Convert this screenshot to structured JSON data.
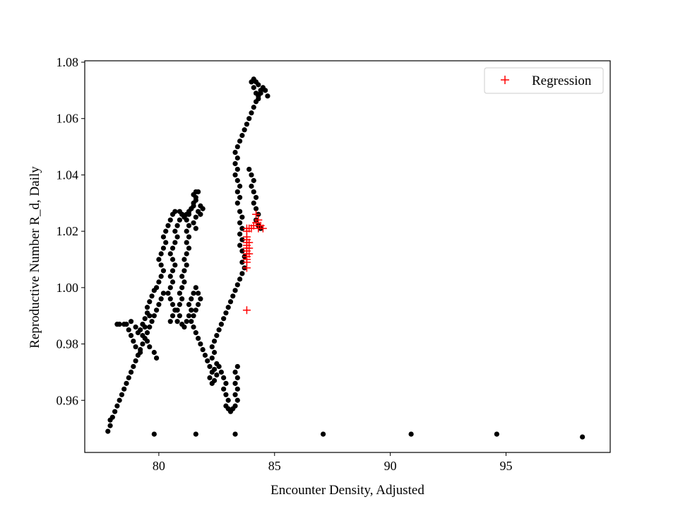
{
  "chart_data": {
    "type": "scatter",
    "xlabel": "Encounter Density, Adjusted",
    "ylabel": "Reproductive Number R_d, Daily",
    "xlim": [
      76.8,
      99.5
    ],
    "ylim": [
      0.9415,
      1.0805
    ],
    "xticks": [
      80,
      85,
      90,
      95
    ],
    "yticks": [
      0.96,
      0.98,
      1.0,
      1.02,
      1.04,
      1.06,
      1.08
    ],
    "ytick_labels": [
      "0.96",
      "0.98",
      "1.00",
      "1.02",
      "1.04",
      "1.06",
      "1.08"
    ],
    "legend_position": "top-right",
    "series": [
      {
        "name": "",
        "marker": "dot",
        "color": "#000000",
        "points": [
          [
            77.8,
            0.949
          ],
          [
            77.9,
            0.951
          ],
          [
            77.9,
            0.953
          ],
          [
            78.0,
            0.954
          ],
          [
            78.1,
            0.956
          ],
          [
            78.2,
            0.958
          ],
          [
            78.3,
            0.96
          ],
          [
            78.4,
            0.962
          ],
          [
            78.5,
            0.964
          ],
          [
            78.6,
            0.966
          ],
          [
            78.7,
            0.968
          ],
          [
            78.8,
            0.97
          ],
          [
            78.9,
            0.972
          ],
          [
            79.0,
            0.974
          ],
          [
            79.1,
            0.976
          ],
          [
            79.2,
            0.978
          ],
          [
            79.3,
            0.98
          ],
          [
            79.4,
            0.982
          ],
          [
            79.5,
            0.984
          ],
          [
            79.6,
            0.986
          ],
          [
            79.7,
            0.988
          ],
          [
            79.8,
            0.99
          ],
          [
            79.9,
            0.992
          ],
          [
            80.0,
            0.994
          ],
          [
            80.1,
            0.996
          ],
          [
            80.2,
            0.998
          ],
          [
            78.6,
            0.987
          ],
          [
            78.8,
            0.988
          ],
          [
            79.0,
            0.986
          ],
          [
            79.1,
            0.984
          ],
          [
            79.2,
            0.985
          ],
          [
            79.3,
            0.987
          ],
          [
            79.4,
            0.989
          ],
          [
            79.5,
            0.991
          ],
          [
            79.6,
            0.99
          ],
          [
            79.4,
            0.986
          ],
          [
            79.3,
            0.983
          ],
          [
            79.5,
            0.981
          ],
          [
            79.6,
            0.979
          ],
          [
            79.8,
            0.977
          ],
          [
            79.9,
            0.975
          ],
          [
            79.2,
            0.977
          ],
          [
            79.0,
            0.979
          ],
          [
            78.9,
            0.981
          ],
          [
            78.8,
            0.983
          ],
          [
            78.7,
            0.985
          ],
          [
            78.5,
            0.987
          ],
          [
            78.3,
            0.987
          ],
          [
            78.2,
            0.987
          ],
          [
            79.5,
            0.993
          ],
          [
            79.6,
            0.995
          ],
          [
            79.7,
            0.997
          ],
          [
            79.8,
            0.999
          ],
          [
            79.9,
            1.0
          ],
          [
            80.0,
            1.002
          ],
          [
            80.1,
            1.004
          ],
          [
            80.2,
            1.006
          ],
          [
            80.1,
            1.008
          ],
          [
            80.0,
            1.01
          ],
          [
            80.1,
            1.012
          ],
          [
            80.2,
            1.014
          ],
          [
            80.3,
            1.016
          ],
          [
            80.2,
            1.018
          ],
          [
            80.3,
            1.02
          ],
          [
            80.4,
            1.022
          ],
          [
            80.5,
            1.024
          ],
          [
            80.6,
            1.026
          ],
          [
            80.7,
            1.027
          ],
          [
            80.9,
            1.027
          ],
          [
            81.0,
            1.026
          ],
          [
            81.1,
            1.025
          ],
          [
            81.2,
            1.026
          ],
          [
            81.3,
            1.027
          ],
          [
            81.4,
            1.028
          ],
          [
            81.5,
            1.029
          ],
          [
            81.6,
            1.031
          ],
          [
            81.5,
            1.033
          ],
          [
            81.6,
            1.034
          ],
          [
            81.7,
            1.034
          ],
          [
            81.6,
            1.032
          ],
          [
            81.5,
            1.03
          ],
          [
            81.4,
            1.028
          ],
          [
            81.3,
            1.026
          ],
          [
            81.2,
            1.024
          ],
          [
            81.3,
            1.022
          ],
          [
            81.2,
            1.02
          ],
          [
            81.3,
            1.018
          ],
          [
            81.2,
            1.016
          ],
          [
            81.3,
            1.014
          ],
          [
            81.2,
            1.012
          ],
          [
            81.1,
            1.01
          ],
          [
            81.2,
            1.008
          ],
          [
            81.1,
            1.006
          ],
          [
            81.0,
            1.004
          ],
          [
            81.1,
            1.002
          ],
          [
            81.0,
            1.0
          ],
          [
            80.9,
            0.998
          ],
          [
            81.0,
            0.996
          ],
          [
            80.9,
            0.994
          ],
          [
            80.8,
            0.992
          ],
          [
            80.9,
            0.99
          ],
          [
            80.8,
            0.988
          ],
          [
            80.5,
            0.988
          ],
          [
            80.6,
            0.99
          ],
          [
            80.7,
            0.992
          ],
          [
            80.6,
            0.994
          ],
          [
            80.5,
            0.996
          ],
          [
            80.4,
            0.998
          ],
          [
            80.5,
            1.0
          ],
          [
            80.6,
            1.002
          ],
          [
            80.5,
            1.004
          ],
          [
            80.6,
            1.006
          ],
          [
            80.7,
            1.008
          ],
          [
            80.6,
            1.01
          ],
          [
            80.5,
            1.012
          ],
          [
            80.6,
            1.014
          ],
          [
            80.7,
            1.016
          ],
          [
            80.8,
            1.018
          ],
          [
            80.7,
            1.02
          ],
          [
            80.8,
            1.022
          ],
          [
            80.9,
            1.024
          ],
          [
            81.0,
            1.026
          ],
          [
            81.0,
            0.987
          ],
          [
            81.1,
            0.986
          ],
          [
            81.2,
            0.988
          ],
          [
            81.3,
            0.99
          ],
          [
            81.4,
            0.992
          ],
          [
            81.3,
            0.994
          ],
          [
            81.4,
            0.996
          ],
          [
            81.5,
            0.998
          ],
          [
            81.6,
            1.0
          ],
          [
            81.7,
            0.998
          ],
          [
            81.8,
            0.996
          ],
          [
            81.7,
            0.994
          ],
          [
            81.6,
            0.992
          ],
          [
            81.5,
            0.99
          ],
          [
            81.4,
            0.988
          ],
          [
            81.5,
            0.986
          ],
          [
            81.6,
            0.984
          ],
          [
            81.7,
            0.982
          ],
          [
            81.8,
            0.98
          ],
          [
            81.9,
            0.978
          ],
          [
            82.0,
            0.976
          ],
          [
            82.1,
            0.974
          ],
          [
            82.2,
            0.972
          ],
          [
            82.3,
            0.97
          ],
          [
            82.2,
            0.968
          ],
          [
            82.3,
            0.966
          ],
          [
            82.4,
            0.967
          ],
          [
            82.5,
            0.969
          ],
          [
            82.4,
            0.971
          ],
          [
            82.5,
            0.973
          ],
          [
            82.6,
            0.972
          ],
          [
            82.7,
            0.97
          ],
          [
            82.8,
            0.968
          ],
          [
            82.9,
            0.966
          ],
          [
            82.8,
            0.964
          ],
          [
            82.9,
            0.962
          ],
          [
            83.0,
            0.96
          ],
          [
            82.9,
            0.958
          ],
          [
            83.0,
            0.957
          ],
          [
            83.1,
            0.956
          ],
          [
            83.2,
            0.957
          ],
          [
            83.3,
            0.958
          ],
          [
            83.4,
            0.96
          ],
          [
            83.3,
            0.962
          ],
          [
            83.4,
            0.964
          ],
          [
            83.3,
            0.966
          ],
          [
            83.4,
            0.968
          ],
          [
            83.3,
            0.97
          ],
          [
            83.4,
            0.972
          ],
          [
            81.8,
            1.026
          ],
          [
            81.9,
            1.028
          ],
          [
            81.8,
            1.029
          ],
          [
            81.7,
            1.027
          ],
          [
            81.6,
            1.025
          ],
          [
            81.5,
            1.023
          ],
          [
            81.6,
            1.021
          ],
          [
            82.3,
            0.975
          ],
          [
            82.4,
            0.977
          ],
          [
            82.3,
            0.979
          ],
          [
            82.4,
            0.981
          ],
          [
            82.5,
            0.983
          ],
          [
            82.6,
            0.985
          ],
          [
            82.7,
            0.987
          ],
          [
            82.8,
            0.989
          ],
          [
            82.9,
            0.991
          ],
          [
            83.0,
            0.993
          ],
          [
            83.1,
            0.995
          ],
          [
            83.2,
            0.997
          ],
          [
            83.3,
            0.999
          ],
          [
            83.4,
            1.001
          ],
          [
            83.5,
            1.003
          ],
          [
            83.6,
            1.005
          ],
          [
            83.7,
            1.007
          ],
          [
            83.6,
            1.009
          ],
          [
            83.7,
            1.011
          ],
          [
            83.6,
            1.013
          ],
          [
            83.5,
            1.015
          ],
          [
            83.6,
            1.017
          ],
          [
            83.5,
            1.019
          ],
          [
            83.6,
            1.021
          ],
          [
            83.5,
            1.023
          ],
          [
            83.6,
            1.025
          ],
          [
            83.5,
            1.027
          ],
          [
            83.4,
            1.03
          ],
          [
            83.5,
            1.032
          ],
          [
            83.4,
            1.034
          ],
          [
            83.5,
            1.036
          ],
          [
            83.4,
            1.038
          ],
          [
            83.3,
            1.04
          ],
          [
            83.4,
            1.042
          ],
          [
            83.3,
            1.044
          ],
          [
            83.4,
            1.046
          ],
          [
            83.3,
            1.048
          ],
          [
            83.4,
            1.05
          ],
          [
            83.5,
            1.052
          ],
          [
            83.6,
            1.054
          ],
          [
            83.7,
            1.056
          ],
          [
            83.8,
            1.058
          ],
          [
            83.9,
            1.06
          ],
          [
            84.0,
            1.062
          ],
          [
            84.1,
            1.064
          ],
          [
            84.2,
            1.066
          ],
          [
            84.3,
            1.068
          ],
          [
            84.4,
            1.07
          ],
          [
            84.3,
            1.072
          ],
          [
            84.2,
            1.073
          ],
          [
            84.1,
            1.074
          ],
          [
            84.0,
            1.073
          ],
          [
            84.1,
            1.071
          ],
          [
            84.2,
            1.069
          ],
          [
            84.3,
            1.067
          ],
          [
            84.4,
            1.069
          ],
          [
            84.5,
            1.071
          ],
          [
            84.6,
            1.07
          ],
          [
            84.7,
            1.068
          ],
          [
            83.9,
            1.042
          ],
          [
            84.0,
            1.04
          ],
          [
            84.1,
            1.038
          ],
          [
            84.0,
            1.036
          ],
          [
            84.1,
            1.034
          ],
          [
            84.2,
            1.032
          ],
          [
            84.1,
            1.03
          ],
          [
            84.2,
            1.028
          ],
          [
            84.3,
            1.026
          ],
          [
            84.2,
            1.024
          ],
          [
            84.3,
            1.022
          ],
          [
            84.4,
            1.021
          ],
          [
            79.8,
            0.948
          ],
          [
            81.6,
            0.948
          ],
          [
            83.3,
            0.948
          ],
          [
            87.1,
            0.948
          ],
          [
            90.9,
            0.948
          ],
          [
            94.6,
            0.948
          ],
          [
            98.3,
            0.947
          ]
        ]
      },
      {
        "name": "Regression",
        "marker": "plus",
        "color": "#ff0000",
        "points": [
          [
            83.8,
            0.992
          ],
          [
            83.8,
            1.007
          ],
          [
            83.8,
            1.009
          ],
          [
            83.8,
            1.01
          ],
          [
            83.8,
            1.011
          ],
          [
            83.8,
            1.012
          ],
          [
            83.8,
            1.013
          ],
          [
            83.8,
            1.014
          ],
          [
            83.8,
            1.015
          ],
          [
            83.8,
            1.016
          ],
          [
            83.8,
            1.017
          ],
          [
            83.8,
            1.018
          ],
          [
            83.8,
            1.02
          ],
          [
            83.8,
            1.021
          ],
          [
            83.9,
            1.021
          ],
          [
            84.0,
            1.021
          ],
          [
            84.1,
            1.022
          ],
          [
            84.2,
            1.023
          ],
          [
            84.3,
            1.024
          ],
          [
            84.4,
            1.022
          ],
          [
            84.5,
            1.021
          ],
          [
            84.2,
            1.026
          ],
          [
            84.3,
            1.021
          ],
          [
            83.9,
            1.016
          ],
          [
            83.9,
            1.014
          ],
          [
            83.9,
            1.012
          ]
        ]
      }
    ]
  }
}
